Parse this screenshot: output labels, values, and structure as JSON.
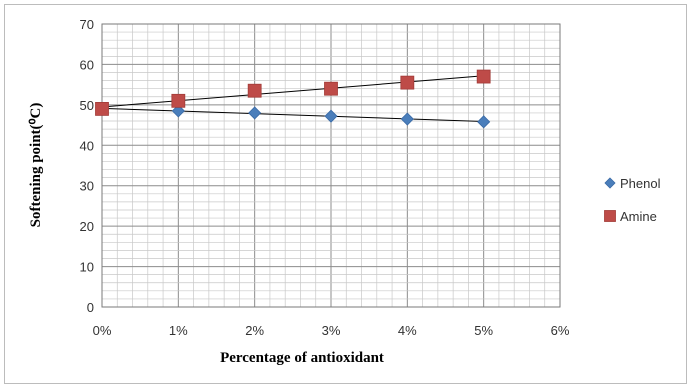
{
  "chart_data": {
    "type": "scatter",
    "title": "",
    "xlabel": "Percentage of antioxidant",
    "ylabel": "Softening point(⁰C)",
    "x_ticks": [
      "0%",
      "1%",
      "2%",
      "3%",
      "4%",
      "5%",
      "6%"
    ],
    "y_ticks": [
      "0",
      "10",
      "20",
      "30",
      "40",
      "50",
      "60",
      "70"
    ],
    "xlim": [
      0,
      6
    ],
    "ylim": [
      0,
      70
    ],
    "grid": true,
    "legend_position": "right",
    "trendlines": true,
    "x": [
      0,
      1,
      2,
      3,
      4,
      5
    ],
    "series": [
      {
        "name": "Phenol",
        "marker": "diamond",
        "color": "#4a7ebb",
        "values": [
          49,
          48.5,
          48,
          47.2,
          46.5,
          45.8
        ]
      },
      {
        "name": "Amine",
        "marker": "square",
        "color": "#be4b48",
        "values": [
          49,
          51,
          53.5,
          54,
          55.5,
          57
        ]
      }
    ]
  }
}
